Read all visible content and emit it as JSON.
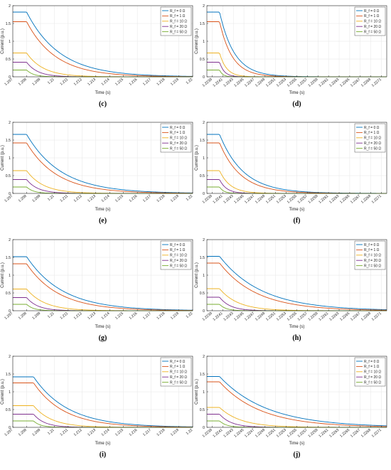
{
  "figure": {
    "legend_labels": [
      "R_f = 0 Ω",
      "R_f = 1 Ω",
      "R_f = 10 Ω",
      "R_f = 20 Ω",
      "R_f = 50 Ω"
    ],
    "series_colors": [
      "#0072BD",
      "#D95319",
      "#EDB120",
      "#7E2F8E",
      "#77AC30"
    ]
  },
  "chart_data": [
    {
      "panel": "c",
      "caption": "(c)",
      "type": "line",
      "xlabel": "Time (s)",
      "ylabel": "Current (p.u.)",
      "xlim": [
        1.207,
        1.22
      ],
      "ylim": [
        0,
        2
      ],
      "xticks": [
        "1.207",
        "1.208",
        "1.209",
        "1.21",
        "1.211",
        "1.212",
        "1.213",
        "1.214",
        "1.215",
        "1.216",
        "1.217",
        "1.218",
        "1.219",
        "1.22"
      ],
      "yticks": [
        "0",
        "0.5",
        "1",
        "1.5",
        "2"
      ],
      "grid": true,
      "legend_position": "top-right",
      "series": [
        {
          "name": "R_f = 0 Ω",
          "initial": 1.82,
          "fault_time": 1.208,
          "tau": 0.0024
        },
        {
          "name": "R_f = 1 Ω",
          "initial": 1.55,
          "fault_time": 1.208,
          "tau": 0.0021
        },
        {
          "name": "R_f = 10 Ω",
          "initial": 0.67,
          "fault_time": 1.208,
          "tau": 0.0012
        },
        {
          "name": "R_f = 20 Ω",
          "initial": 0.41,
          "fault_time": 1.208,
          "tau": 0.0008
        },
        {
          "name": "R_f = 50 Ω",
          "initial": 0.19,
          "fault_time": 1.208,
          "tau": 0.0005
        }
      ]
    },
    {
      "panel": "d",
      "caption": "(d)",
      "type": "line",
      "xlabel": "Time (s)",
      "ylabel": "Current (p.u.)",
      "xlim": [
        1.2238,
        1.2272
      ],
      "ylim": [
        0,
        2
      ],
      "xticks": [
        "1.2239",
        "1.2241",
        "1.2243",
        "1.2245",
        "1.2247",
        "1.2249",
        "1.2251",
        "1.2253",
        "1.2255",
        "1.2257",
        "1.2259",
        "1.2261",
        "1.2263",
        "1.2265",
        "1.2267",
        "1.2269",
        "1.2271"
      ],
      "yticks": [
        "0",
        "0.5",
        "1",
        "1.5",
        "2"
      ],
      "grid": true,
      "legend_position": "top-right",
      "series": [
        {
          "name": "R_f = 0 Ω",
          "initial": 1.82,
          "fault_time": 1.22404,
          "tau": 0.00028
        },
        {
          "name": "R_f = 1 Ω",
          "initial": 1.55,
          "fault_time": 1.22404,
          "tau": 0.00024
        },
        {
          "name": "R_f = 10 Ω",
          "initial": 0.67,
          "fault_time": 1.22404,
          "tau": 0.00013
        },
        {
          "name": "R_f = 20 Ω",
          "initial": 0.41,
          "fault_time": 1.22404,
          "tau": 9e-05
        },
        {
          "name": "R_f = 50 Ω",
          "initial": 0.19,
          "fault_time": 1.22404,
          "tau": 6e-05
        }
      ]
    },
    {
      "panel": "e",
      "caption": "(e)",
      "type": "line",
      "xlabel": "Time (s)",
      "ylabel": "Current (p.u.)",
      "xlim": [
        1.207,
        1.22
      ],
      "ylim": [
        0,
        2
      ],
      "xticks": [
        "1.207",
        "1.208",
        "1.209",
        "1.21",
        "1.211",
        "1.212",
        "1.213",
        "1.214",
        "1.215",
        "1.216",
        "1.217",
        "1.218",
        "1.219",
        "1.22"
      ],
      "yticks": [
        "0",
        "0.5",
        "1",
        "1.5",
        "2"
      ],
      "grid": true,
      "legend_position": "top-right",
      "series": [
        {
          "name": "R_f = 0 Ω",
          "initial": 1.66,
          "fault_time": 1.208,
          "tau": 0.0025
        },
        {
          "name": "R_f = 1 Ω",
          "initial": 1.42,
          "fault_time": 1.208,
          "tau": 0.0022
        },
        {
          "name": "R_f = 10 Ω",
          "initial": 0.64,
          "fault_time": 1.208,
          "tau": 0.0012
        },
        {
          "name": "R_f = 20 Ω",
          "initial": 0.39,
          "fault_time": 1.208,
          "tau": 0.0008
        },
        {
          "name": "R_f = 50 Ω",
          "initial": 0.18,
          "fault_time": 1.208,
          "tau": 0.0005
        }
      ]
    },
    {
      "panel": "f",
      "caption": "(f)",
      "type": "line",
      "xlabel": "Time (s)",
      "ylabel": "Current (p.u.)",
      "xlim": [
        1.2238,
        1.2272
      ],
      "ylim": [
        0,
        2
      ],
      "xticks": [
        "1.2239",
        "1.2241",
        "1.2243",
        "1.2245",
        "1.2247",
        "1.2249",
        "1.2251",
        "1.2253",
        "1.2255",
        "1.2257",
        "1.2259",
        "1.2261",
        "1.2263",
        "1.2265",
        "1.2267",
        "1.2269",
        "1.2271"
      ],
      "yticks": [
        "0",
        "0.5",
        "1",
        "1.5",
        "2"
      ],
      "grid": true,
      "legend_position": "top-right",
      "series": [
        {
          "name": "R_f = 0 Ω",
          "initial": 1.66,
          "fault_time": 1.22404,
          "tau": 0.00045
        },
        {
          "name": "R_f = 1 Ω",
          "initial": 1.42,
          "fault_time": 1.22404,
          "tau": 0.0004
        },
        {
          "name": "R_f = 10 Ω",
          "initial": 0.64,
          "fault_time": 1.22404,
          "tau": 0.0002
        },
        {
          "name": "R_f = 20 Ω",
          "initial": 0.39,
          "fault_time": 1.22404,
          "tau": 0.00013
        },
        {
          "name": "R_f = 50 Ω",
          "initial": 0.18,
          "fault_time": 1.22404,
          "tau": 8e-05
        }
      ]
    },
    {
      "panel": "g",
      "caption": "(g)",
      "type": "line",
      "xlabel": "Time (s)",
      "ylabel": "Current (p.u.)",
      "xlim": [
        1.207,
        1.22
      ],
      "ylim": [
        0,
        2
      ],
      "xticks": [
        "1.207",
        "1.208",
        "1.209",
        "1.21",
        "1.211",
        "1.212",
        "1.213",
        "1.214",
        "1.215",
        "1.216",
        "1.217",
        "1.218",
        "1.219",
        "1.22"
      ],
      "yticks": [
        "0",
        "0.5",
        "1",
        "1.5",
        "2"
      ],
      "grid": true,
      "legend_position": "top-right",
      "series": [
        {
          "name": "R_f = 0 Ω",
          "initial": 1.52,
          "fault_time": 1.208,
          "tau": 0.0026
        },
        {
          "name": "R_f = 1 Ω",
          "initial": 1.32,
          "fault_time": 1.208,
          "tau": 0.0023
        },
        {
          "name": "R_f = 10 Ω",
          "initial": 0.61,
          "fault_time": 1.208,
          "tau": 0.0013
        },
        {
          "name": "R_f = 20 Ω",
          "initial": 0.37,
          "fault_time": 1.208,
          "tau": 0.0008
        },
        {
          "name": "R_f = 50 Ω",
          "initial": 0.18,
          "fault_time": 1.208,
          "tau": 0.0005
        }
      ]
    },
    {
      "panel": "h",
      "caption": "(h)",
      "type": "line",
      "xlabel": "Time (s)",
      "ylabel": "Current (p.u.)",
      "xlim": [
        1.2238,
        1.2272
      ],
      "ylim": [
        0,
        2
      ],
      "xticks": [
        "1.2239",
        "1.2241",
        "1.2243",
        "1.2245",
        "1.2247",
        "1.2249",
        "1.2251",
        "1.2253",
        "1.2255",
        "1.2257",
        "1.2259",
        "1.2261",
        "1.2263",
        "1.2265",
        "1.2267",
        "1.2269",
        "1.2271"
      ],
      "yticks": [
        "0",
        "0.5",
        "1",
        "1.5",
        "2"
      ],
      "grid": true,
      "legend_position": "top-right",
      "series": [
        {
          "name": "R_f = 0 Ω",
          "initial": 1.53,
          "fault_time": 1.22404,
          "tau": 0.0008
        },
        {
          "name": "R_f = 1 Ω",
          "initial": 1.34,
          "fault_time": 1.22404,
          "tau": 0.0007
        },
        {
          "name": "R_f = 10 Ω",
          "initial": 0.62,
          "fault_time": 1.22404,
          "tau": 0.00035
        },
        {
          "name": "R_f = 20 Ω",
          "initial": 0.38,
          "fault_time": 1.22404,
          "tau": 0.0002
        },
        {
          "name": "R_f = 50 Ω",
          "initial": 0.18,
          "fault_time": 1.22404,
          "tau": 0.00012
        }
      ]
    },
    {
      "panel": "i",
      "caption": "(i)",
      "type": "line",
      "xlabel": "Time (s)",
      "ylabel": "Current (p.u.)",
      "xlim": [
        1.207,
        1.22
      ],
      "ylim": [
        0,
        2
      ],
      "xticks": [
        "1.207",
        "1.208",
        "1.209",
        "1.21",
        "1.211",
        "1.212",
        "1.213",
        "1.214",
        "1.215",
        "1.216",
        "1.217",
        "1.218",
        "1.219",
        "1.22"
      ],
      "yticks": [
        "0",
        "0.5",
        "1",
        "1.5",
        "2"
      ],
      "grid": true,
      "legend_position": "top-right",
      "series": [
        {
          "name": "R_f = 0 Ω",
          "initial": 1.42,
          "fault_time": 1.2085,
          "tau": 0.0025
        },
        {
          "name": "R_f = 1 Ω",
          "initial": 1.25,
          "fault_time": 1.2085,
          "tau": 0.0022
        },
        {
          "name": "R_f = 10 Ω",
          "initial": 0.61,
          "fault_time": 1.2085,
          "tau": 0.0013
        },
        {
          "name": "R_f = 20 Ω",
          "initial": 0.37,
          "fault_time": 1.2085,
          "tau": 0.0008
        },
        {
          "name": "R_f = 50 Ω",
          "initial": 0.18,
          "fault_time": 1.2085,
          "tau": 0.0005
        }
      ]
    },
    {
      "panel": "j",
      "caption": "(j)",
      "type": "line",
      "xlabel": "Time (s)",
      "ylabel": "Current (p.u.)",
      "xlim": [
        1.2238,
        1.2272
      ],
      "ylim": [
        0,
        2
      ],
      "xticks": [
        "1.2239",
        "1.2241",
        "1.2243",
        "1.2245",
        "1.2247",
        "1.2249",
        "1.2251",
        "1.2253",
        "1.2255",
        "1.2257",
        "1.2259",
        "1.2261",
        "1.2263",
        "1.2265",
        "1.2267",
        "1.2269",
        "1.2271"
      ],
      "yticks": [
        "0",
        "0.5",
        "1",
        "1.5",
        "2"
      ],
      "grid": true,
      "legend_position": "top-right",
      "series": [
        {
          "name": "R_f = 0 Ω",
          "initial": 1.43,
          "fault_time": 1.22404,
          "tau": 0.0009
        },
        {
          "name": "R_f = 1 Ω",
          "initial": 1.28,
          "fault_time": 1.22404,
          "tau": 0.00078
        },
        {
          "name": "R_f = 10 Ω",
          "initial": 0.56,
          "fault_time": 1.22404,
          "tau": 0.0004
        },
        {
          "name": "R_f = 20 Ω",
          "initial": 0.37,
          "fault_time": 1.22404,
          "tau": 0.00022
        },
        {
          "name": "R_f = 50 Ω",
          "initial": 0.18,
          "fault_time": 1.22404,
          "tau": 0.00013
        }
      ]
    }
  ]
}
